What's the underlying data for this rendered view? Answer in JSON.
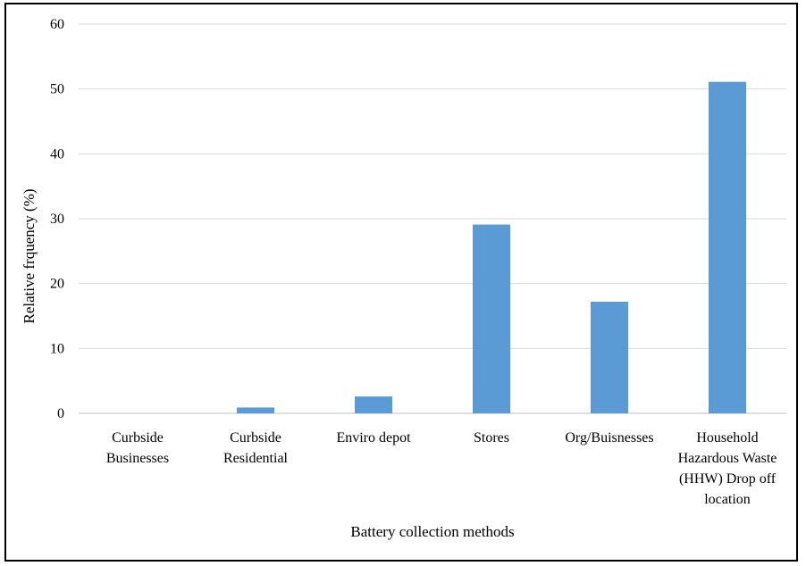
{
  "chart_data": {
    "type": "bar",
    "title": "",
    "xlabel": "Battery collection methods",
    "ylabel": "Relative frquency (%)",
    "ylim": [
      0,
      60
    ],
    "yticks": [
      0,
      10,
      20,
      30,
      40,
      50,
      60
    ],
    "grid": true,
    "legend": "none",
    "bar_color": "#5B9BD5",
    "categories": [
      [
        "Curbside",
        "Businesses"
      ],
      [
        "Curbside",
        "Residential"
      ],
      [
        "Enviro depot"
      ],
      [
        "Stores"
      ],
      [
        "Org/Buisnesses"
      ],
      [
        "Household",
        "Hazardous Waste",
        "(HHW) Drop off",
        "location"
      ]
    ],
    "values": [
      0,
      0.9,
      2.6,
      29.1,
      17.2,
      51.1
    ]
  }
}
